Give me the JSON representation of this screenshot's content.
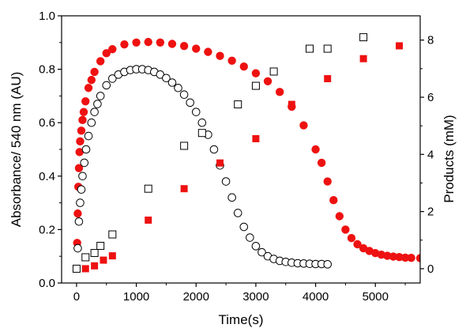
{
  "chart_data": {
    "type": "scatter",
    "title": "",
    "xlabel": "Time(s)",
    "ylabel_left": "Absorbance/ 540 nm (AU)",
    "ylabel_right": "Products (mM)",
    "xlim": [
      -250,
      5750
    ],
    "ylim_left": [
      0.0,
      1.0
    ],
    "ylim_right": [
      -0.5,
      8.85
    ],
    "x_ticks": [
      0,
      1000,
      2000,
      3000,
      4000,
      5000
    ],
    "y_left_ticks": [
      0.0,
      0.2,
      0.4,
      0.6,
      0.8,
      1.0
    ],
    "y_right_ticks": [
      0,
      2,
      4,
      6,
      8
    ],
    "x_tick_labels": [
      "0",
      "1000",
      "2000",
      "3000",
      "4000",
      "5000"
    ],
    "y_left_tick_labels": [
      "0.0",
      "0.2",
      "0.4",
      "0.6",
      "0.8",
      "1.0"
    ],
    "y_right_tick_labels": [
      "0",
      "2",
      "4",
      "6",
      "8"
    ],
    "grid": false,
    "legend": "none",
    "series": [
      {
        "axis": "left",
        "marker": "filled-circle",
        "color": "#ee1111",
        "x": [
          10,
          20,
          30,
          40,
          50,
          60,
          80,
          100,
          120,
          150,
          200,
          250,
          300,
          400,
          500,
          600,
          800,
          1000,
          1200,
          1400,
          1600,
          1800,
          2000,
          2200,
          2400,
          2600,
          2800,
          3000,
          3200,
          3400,
          3600,
          3800,
          4000,
          4100,
          4200,
          4300,
          4400,
          4500,
          4600,
          4700,
          4800,
          4900,
          5000,
          5100,
          5200,
          5300,
          5400,
          5500,
          5600,
          5750
        ],
        "y": [
          0.15,
          0.26,
          0.36,
          0.43,
          0.49,
          0.53,
          0.57,
          0.61,
          0.64,
          0.68,
          0.73,
          0.76,
          0.79,
          0.83,
          0.86,
          0.875,
          0.893,
          0.9,
          0.902,
          0.9,
          0.895,
          0.887,
          0.877,
          0.865,
          0.85,
          0.832,
          0.81,
          0.785,
          0.755,
          0.715,
          0.66,
          0.59,
          0.5,
          0.45,
          0.38,
          0.31,
          0.25,
          0.2,
          0.168,
          0.145,
          0.13,
          0.12,
          0.112,
          0.106,
          0.102,
          0.099,
          0.097,
          0.095,
          0.094,
          0.093
        ]
      },
      {
        "axis": "left",
        "marker": "open-circle",
        "color": "#000000",
        "x": [
          20,
          40,
          60,
          80,
          100,
          130,
          160,
          200,
          250,
          300,
          350,
          400,
          500,
          600,
          700,
          800,
          900,
          1000,
          1100,
          1200,
          1300,
          1400,
          1500,
          1600,
          1700,
          1800,
          1900,
          2000,
          2100,
          2200,
          2300,
          2400,
          2500,
          2600,
          2700,
          2800,
          2900,
          3000,
          3100,
          3200,
          3300,
          3400,
          3500,
          3600,
          3700,
          3800,
          3900,
          4000,
          4100,
          4200
        ],
        "y": [
          0.13,
          0.23,
          0.3,
          0.35,
          0.4,
          0.45,
          0.5,
          0.55,
          0.6,
          0.64,
          0.67,
          0.7,
          0.74,
          0.765,
          0.78,
          0.79,
          0.797,
          0.8,
          0.8,
          0.797,
          0.79,
          0.78,
          0.767,
          0.75,
          0.73,
          0.705,
          0.675,
          0.64,
          0.6,
          0.555,
          0.5,
          0.44,
          0.38,
          0.32,
          0.262,
          0.21,
          0.17,
          0.138,
          0.115,
          0.1,
          0.09,
          0.083,
          0.079,
          0.076,
          0.074,
          0.073,
          0.072,
          0.071,
          0.071,
          0.07
        ]
      },
      {
        "axis": "right",
        "marker": "open-square",
        "color": "#000000",
        "x": [
          0,
          150,
          300,
          400,
          600,
          1200,
          1800,
          2100,
          2700,
          3000,
          3300,
          3900,
          4200,
          4800
        ],
        "y": [
          0.0,
          0.4,
          0.55,
          0.8,
          1.2,
          2.8,
          4.3,
          4.75,
          5.75,
          6.4,
          6.9,
          7.7,
          7.7,
          8.1
        ]
      },
      {
        "axis": "right",
        "marker": "filled-square",
        "color": "#ee1111",
        "x": [
          150,
          300,
          450,
          600,
          1200,
          1800,
          2400,
          3000,
          3600,
          4200,
          4800,
          5400
        ],
        "y": [
          0.0,
          0.1,
          0.3,
          0.45,
          1.7,
          2.8,
          3.7,
          4.55,
          5.75,
          6.65,
          7.35,
          7.8
        ]
      }
    ]
  }
}
